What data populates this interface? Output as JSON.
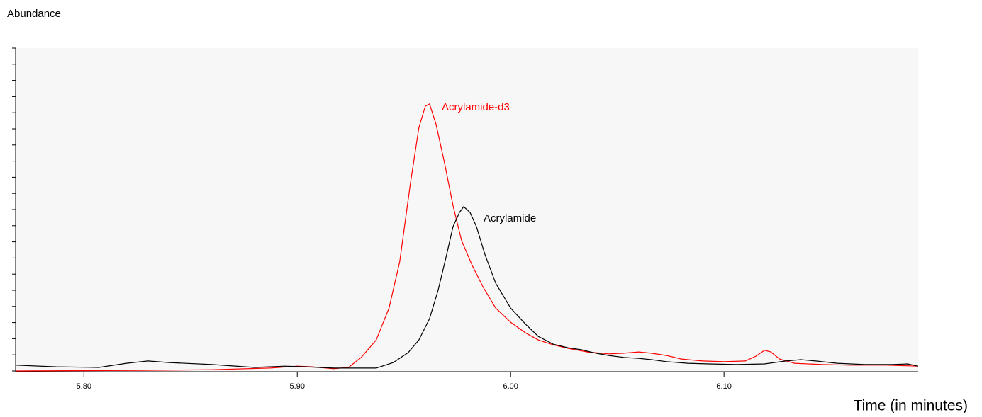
{
  "chart_data": {
    "type": "line",
    "y_label": "Abundance",
    "x_label": "Time (in minutes)",
    "xlim": [
      5.768,
      6.191
    ],
    "ylim": [
      0,
      100
    ],
    "xticks": [
      {
        "value": 5.8,
        "label": "5.80"
      },
      {
        "value": 5.9,
        "label": "5.90"
      },
      {
        "value": 6.0,
        "label": "6.00"
      },
      {
        "value": 6.1,
        "label": "6.10"
      }
    ],
    "yticks": [
      0,
      5,
      10,
      15,
      20,
      25,
      30,
      35,
      40,
      45,
      50,
      55,
      60,
      65,
      70,
      75,
      80,
      85,
      90,
      95,
      100
    ],
    "series": [
      {
        "name": "Acrylamide-d3",
        "color": "#ff0000",
        "x": [
          5.768,
          5.827,
          5.86,
          5.887,
          5.9,
          5.907,
          5.917,
          5.924,
          5.93,
          5.937,
          5.943,
          5.948,
          5.953,
          5.957,
          5.96,
          5.962,
          5.965,
          5.969,
          5.973,
          5.977,
          5.982,
          5.987,
          5.993,
          6.0,
          6.007,
          6.013,
          6.02,
          6.027,
          6.036,
          6.046,
          6.053,
          6.06,
          6.066,
          6.073,
          6.08,
          6.09,
          6.1,
          6.11,
          6.115,
          6.119,
          6.122,
          6.126,
          6.133,
          6.146,
          6.159,
          6.176,
          6.191
        ],
        "values": [
          0,
          0.2,
          0.4,
          0.9,
          1.5,
          1.3,
          0.7,
          1.1,
          4.2,
          9.6,
          19.5,
          33.8,
          57.9,
          75.4,
          82.0,
          82.7,
          76.5,
          64.5,
          51.3,
          40.4,
          32.7,
          26.1,
          19.5,
          15.1,
          11.8,
          9.6,
          8.1,
          7.0,
          5.9,
          5.3,
          5.5,
          5.9,
          5.5,
          4.8,
          3.7,
          3.1,
          2.9,
          3.1,
          4.6,
          6.4,
          5.9,
          3.7,
          2.4,
          2.0,
          1.8,
          1.8,
          1.5
        ]
      },
      {
        "name": "Acrylamide",
        "color": "#000000",
        "x": [
          5.768,
          5.787,
          5.807,
          5.82,
          5.83,
          5.84,
          5.86,
          5.88,
          5.894,
          5.904,
          5.917,
          5.937,
          5.945,
          5.952,
          5.957,
          5.962,
          5.966,
          5.97,
          5.973,
          5.976,
          5.978,
          5.981,
          5.984,
          5.988,
          5.993,
          6.0,
          6.007,
          6.013,
          6.02,
          6.027,
          6.033,
          6.04,
          6.046,
          6.053,
          6.06,
          6.066,
          6.073,
          6.083,
          6.093,
          6.106,
          6.119,
          6.129,
          6.136,
          6.143,
          6.153,
          6.166,
          6.179,
          6.186,
          6.191
        ],
        "values": [
          1.8,
          1.3,
          1.1,
          2.4,
          3.1,
          2.6,
          2.0,
          1.1,
          1.5,
          1.3,
          0.9,
          0.9,
          2.6,
          5.7,
          9.6,
          16.2,
          25.0,
          36.0,
          44.7,
          49.1,
          50.9,
          49.1,
          44.7,
          36.0,
          27.2,
          19.5,
          14.5,
          10.7,
          8.3,
          7.2,
          6.6,
          5.5,
          4.8,
          4.2,
          3.9,
          3.5,
          2.9,
          2.4,
          2.2,
          2.0,
          2.2,
          3.1,
          3.5,
          3.1,
          2.4,
          2.0,
          2.0,
          2.2,
          1.5
        ]
      }
    ]
  }
}
